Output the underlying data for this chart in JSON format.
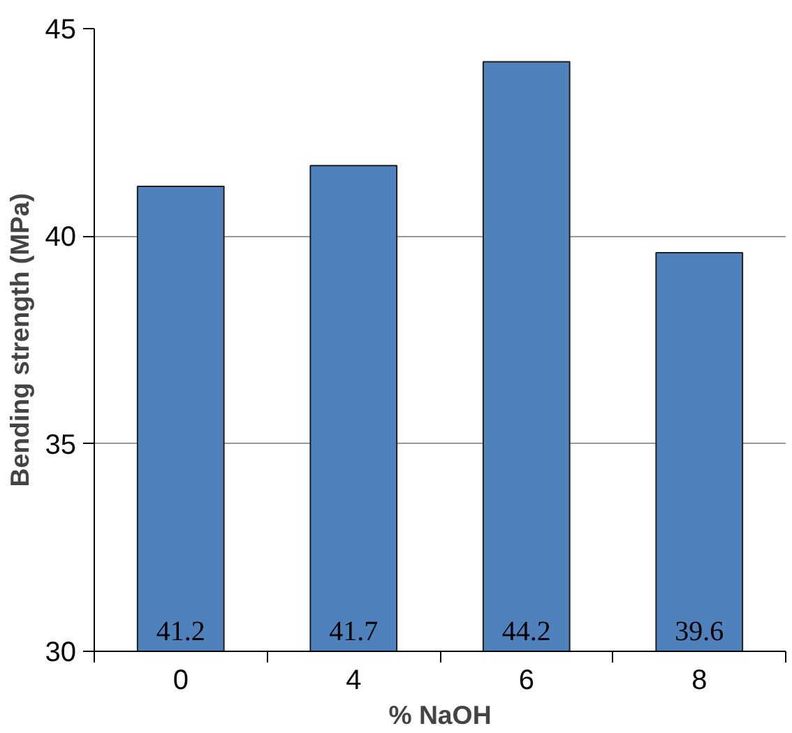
{
  "chart_data": {
    "type": "bar",
    "xlabel": "% NaOH",
    "ylabel": "Bending strength (MPa)",
    "categories": [
      "0",
      "4",
      "6",
      "8"
    ],
    "values": [
      41.2,
      41.7,
      44.2,
      39.6
    ],
    "color": "#4f81bd",
    "ylim": [
      30,
      45
    ],
    "yticks": [
      30,
      35,
      40,
      45
    ],
    "grid": "y",
    "data_labels": true
  }
}
